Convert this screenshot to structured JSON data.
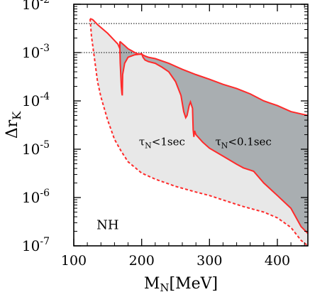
{
  "chart_data": {
    "type": "area",
    "title": "",
    "xlabel": "M_N[MeV]",
    "ylabel": "Δr_K",
    "x_scale": "linear",
    "y_scale": "log",
    "xlim": [
      100,
      445
    ],
    "ylim": [
      1e-07,
      0.01
    ],
    "x_ticks": [
      100,
      200,
      300,
      400
    ],
    "y_ticks": [
      {
        "value": 1e-07,
        "base": "10",
        "exp": "-7"
      },
      {
        "value": 1e-06,
        "base": "10",
        "exp": "-6"
      },
      {
        "value": 1e-05,
        "base": "10",
        "exp": "-5"
      },
      {
        "value": 0.0001,
        "base": "10",
        "exp": "-4"
      },
      {
        "value": 0.001,
        "base": "10",
        "exp": "-3"
      },
      {
        "value": 0.01,
        "base": "10",
        "exp": "-2"
      }
    ],
    "reference_lines": [
      {
        "y": 0.004,
        "style": "dotted"
      },
      {
        "y": 0.001,
        "style": "dotted"
      }
    ],
    "regions": [
      {
        "label": "τ_N<1sec",
        "label_position": {
          "x": 230,
          "y": 1.2e-05
        },
        "fill": "#e8e8e8",
        "upper": {
          "x": [
            124,
            125,
            128,
            135,
            150,
            165,
            168,
            168.5,
            170,
            171,
            171.5,
            172,
            175,
            180,
            185,
            190,
            195,
            200,
            202,
            205,
            210,
            220,
            230,
            240,
            250,
            258,
            262,
            265,
            267,
            270,
            272,
            275,
            276,
            277,
            278,
            280,
            290,
            300,
            320,
            340,
            350,
            360,
            365,
            380,
            400,
            420,
            435,
            445
          ],
          "y": [
            0.005,
            0.005,
            0.0048,
            0.0038,
            0.0025,
            0.0015,
            0.0012,
            0.0006,
            0.0002,
            0.00014,
            0.00013,
            0.00035,
            0.0006,
            0.0008,
            0.00085,
            0.0009,
            0.00092,
            0.00095,
            0.0008,
            0.0007,
            0.00065,
            0.0006,
            0.0005,
            0.0004,
            0.00025,
            0.00013,
            6e-05,
            4.5e-05,
            5e-05,
            8e-05,
            9.5e-05,
            7e-05,
            2.5e-05,
            1.8e-05,
            2.4e-05,
            2e-05,
            1.4e-05,
            1.05e-05,
            7.2e-06,
            4.9e-06,
            4.1e-06,
            3.7e-06,
            3.5e-06,
            2e-06,
            1.1e-06,
            6e-07,
            2.5e-07,
            1.8e-07
          ]
        },
        "lower": {
          "x": [
            124,
            126,
            130,
            135,
            140,
            150,
            160,
            170,
            180,
            200,
            220,
            250,
            280,
            300,
            330,
            350,
            380,
            400,
            420,
            435,
            445
          ],
          "y": [
            0.005,
            0.0022,
            0.00085,
            0.00025,
            0.00012,
            4e-05,
            1.6e-05,
            9e-06,
            5.5e-06,
            3.2e-06,
            2.4e-06,
            1.7e-06,
            1.3e-06,
            1.1e-06,
            8e-07,
            6.5e-07,
            5e-07,
            3.8e-07,
            2.4e-07,
            1.3e-07,
            1e-07
          ]
        }
      },
      {
        "label": "τ_N<0.1sec",
        "label_position": {
          "x": 350,
          "y": 1.2e-05
        },
        "fill": "#a9aeb1",
        "upper": {
          "x": [
            168,
            170,
            175,
            180,
            185,
            190,
            195,
            200,
            205,
            210,
            220,
            240,
            260,
            280,
            300,
            320,
            340,
            360,
            380,
            400,
            420,
            445
          ],
          "y": [
            0.0017,
            0.0016,
            0.0014,
            0.0012,
            0.0011,
            0.001,
            0.00093,
            0.00092,
            0.00085,
            0.0008,
            0.00075,
            0.0006,
            0.00045,
            0.00035,
            0.00028,
            0.00022,
            0.00018,
            0.00014,
            0.0001,
            8e-05,
            6e-05,
            5e-05
          ]
        }
      }
    ],
    "annotations": [
      {
        "text": "NH",
        "x": 150,
        "y": 2.2e-07
      }
    ],
    "colors": {
      "boundary": "#ff2a2a",
      "light_region": "#e8e8e8",
      "dark_region": "#a9aeb1",
      "axis": "#000000"
    },
    "grid": false,
    "legend": "none"
  }
}
